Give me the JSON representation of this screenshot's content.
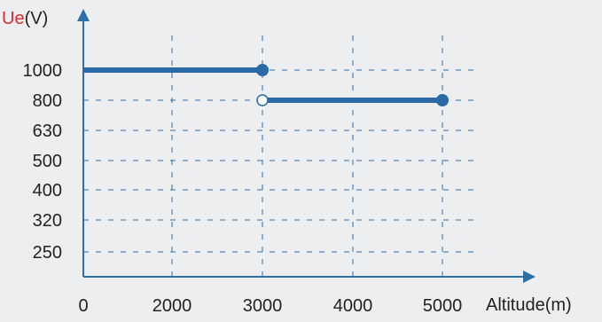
{
  "chart_data": {
    "type": "line",
    "y_axis_label": {
      "prefix": "Ue",
      "suffix": "(V)",
      "prefix_color": "#e0282e"
    },
    "x_axis_label": "Altitude(m)",
    "x_ticks": [
      0,
      2000,
      3000,
      4000,
      5000
    ],
    "x_tick_labels": [
      "0",
      "2000",
      "3000",
      "4000",
      "5000"
    ],
    "y_levels": [
      "250",
      "320",
      "400",
      "500",
      "630",
      "800",
      "1000"
    ],
    "grid": true,
    "series_color": "#2a6aa6",
    "segments": [
      {
        "x_start": 0,
        "x_end": 3000,
        "y": "1000",
        "start_marker": "none",
        "end_marker": "filled"
      },
      {
        "x_start": 3000,
        "x_end": 5000,
        "y": "800",
        "start_marker": "open",
        "end_marker": "filled"
      }
    ]
  }
}
